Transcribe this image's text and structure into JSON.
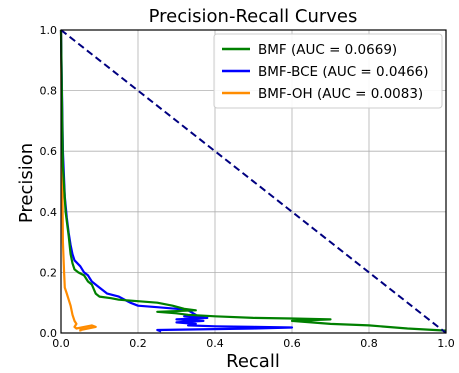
{
  "chart_data": {
    "type": "line",
    "title": "Precision-Recall Curves",
    "xlabel": "Recall",
    "ylabel": "Precision",
    "xlim": [
      0.0,
      1.0
    ],
    "ylim": [
      0.0,
      1.0
    ],
    "x_ticks": [
      "0.0",
      "0.2",
      "0.4",
      "0.6",
      "0.8",
      "1.0"
    ],
    "y_ticks": [
      "0.0",
      "0.2",
      "0.4",
      "0.6",
      "0.8",
      "1.0"
    ],
    "grid": true,
    "legend_position": "top-right",
    "series": [
      {
        "name": "BMF (AUC = 0.0669)",
        "color": "#008000",
        "points": [
          [
            0.0,
            1.0
          ],
          [
            0.005,
            0.55
          ],
          [
            0.012,
            0.4
          ],
          [
            0.02,
            0.32
          ],
          [
            0.025,
            0.26
          ],
          [
            0.03,
            0.23
          ],
          [
            0.035,
            0.21
          ],
          [
            0.045,
            0.2
          ],
          [
            0.06,
            0.19
          ],
          [
            0.07,
            0.17
          ],
          [
            0.08,
            0.16
          ],
          [
            0.09,
            0.13
          ],
          [
            0.1,
            0.12
          ],
          [
            0.13,
            0.115
          ],
          [
            0.15,
            0.11
          ],
          [
            0.2,
            0.105
          ],
          [
            0.25,
            0.1
          ],
          [
            0.29,
            0.09
          ],
          [
            0.32,
            0.08
          ],
          [
            0.35,
            0.075
          ],
          [
            0.25,
            0.07
          ],
          [
            0.3,
            0.065
          ],
          [
            0.33,
            0.06
          ],
          [
            0.4,
            0.055
          ],
          [
            0.5,
            0.05
          ],
          [
            0.6,
            0.048
          ],
          [
            0.7,
            0.045
          ],
          [
            0.6,
            0.04
          ],
          [
            0.65,
            0.035
          ],
          [
            0.7,
            0.03
          ],
          [
            0.8,
            0.025
          ],
          [
            0.9,
            0.015
          ],
          [
            1.0,
            0.008
          ]
        ]
      },
      {
        "name": "BMF-BCE (AUC = 0.0466)",
        "color": "#0000ff",
        "points": [
          [
            0.0,
            1.0
          ],
          [
            0.005,
            0.6
          ],
          [
            0.01,
            0.45
          ],
          [
            0.015,
            0.38
          ],
          [
            0.02,
            0.33
          ],
          [
            0.025,
            0.29
          ],
          [
            0.03,
            0.26
          ],
          [
            0.035,
            0.24
          ],
          [
            0.05,
            0.22
          ],
          [
            0.06,
            0.2
          ],
          [
            0.07,
            0.19
          ],
          [
            0.08,
            0.17
          ],
          [
            0.1,
            0.15
          ],
          [
            0.12,
            0.13
          ],
          [
            0.15,
            0.12
          ],
          [
            0.18,
            0.1
          ],
          [
            0.2,
            0.09
          ],
          [
            0.25,
            0.085
          ],
          [
            0.3,
            0.08
          ],
          [
            0.33,
            0.075
          ],
          [
            0.35,
            0.06
          ],
          [
            0.32,
            0.055
          ],
          [
            0.38,
            0.05
          ],
          [
            0.3,
            0.045
          ],
          [
            0.37,
            0.04
          ],
          [
            0.3,
            0.035
          ],
          [
            0.35,
            0.03
          ],
          [
            0.33,
            0.025
          ],
          [
            0.4,
            0.022
          ],
          [
            0.5,
            0.02
          ],
          [
            0.6,
            0.018
          ],
          [
            0.5,
            0.015
          ],
          [
            0.25,
            0.01
          ],
          [
            0.26,
            0.005
          ]
        ]
      },
      {
        "name": "BMF-OH (AUC = 0.0083)",
        "color": "#ff8c00",
        "points": [
          [
            0.0,
            1.0
          ],
          [
            0.005,
            0.3
          ],
          [
            0.008,
            0.2
          ],
          [
            0.01,
            0.15
          ],
          [
            0.015,
            0.13
          ],
          [
            0.02,
            0.11
          ],
          [
            0.025,
            0.09
          ],
          [
            0.03,
            0.06
          ],
          [
            0.035,
            0.04
          ],
          [
            0.04,
            0.03
          ],
          [
            0.035,
            0.02
          ],
          [
            0.04,
            0.015
          ],
          [
            0.06,
            0.02
          ],
          [
            0.08,
            0.025
          ],
          [
            0.09,
            0.02
          ],
          [
            0.05,
            0.01
          ],
          [
            0.05,
            0.005
          ]
        ]
      },
      {
        "name": "",
        "color": "#000080",
        "dashed": true,
        "points": [
          [
            0.0,
            1.0
          ],
          [
            1.0,
            0.0
          ]
        ]
      }
    ]
  }
}
